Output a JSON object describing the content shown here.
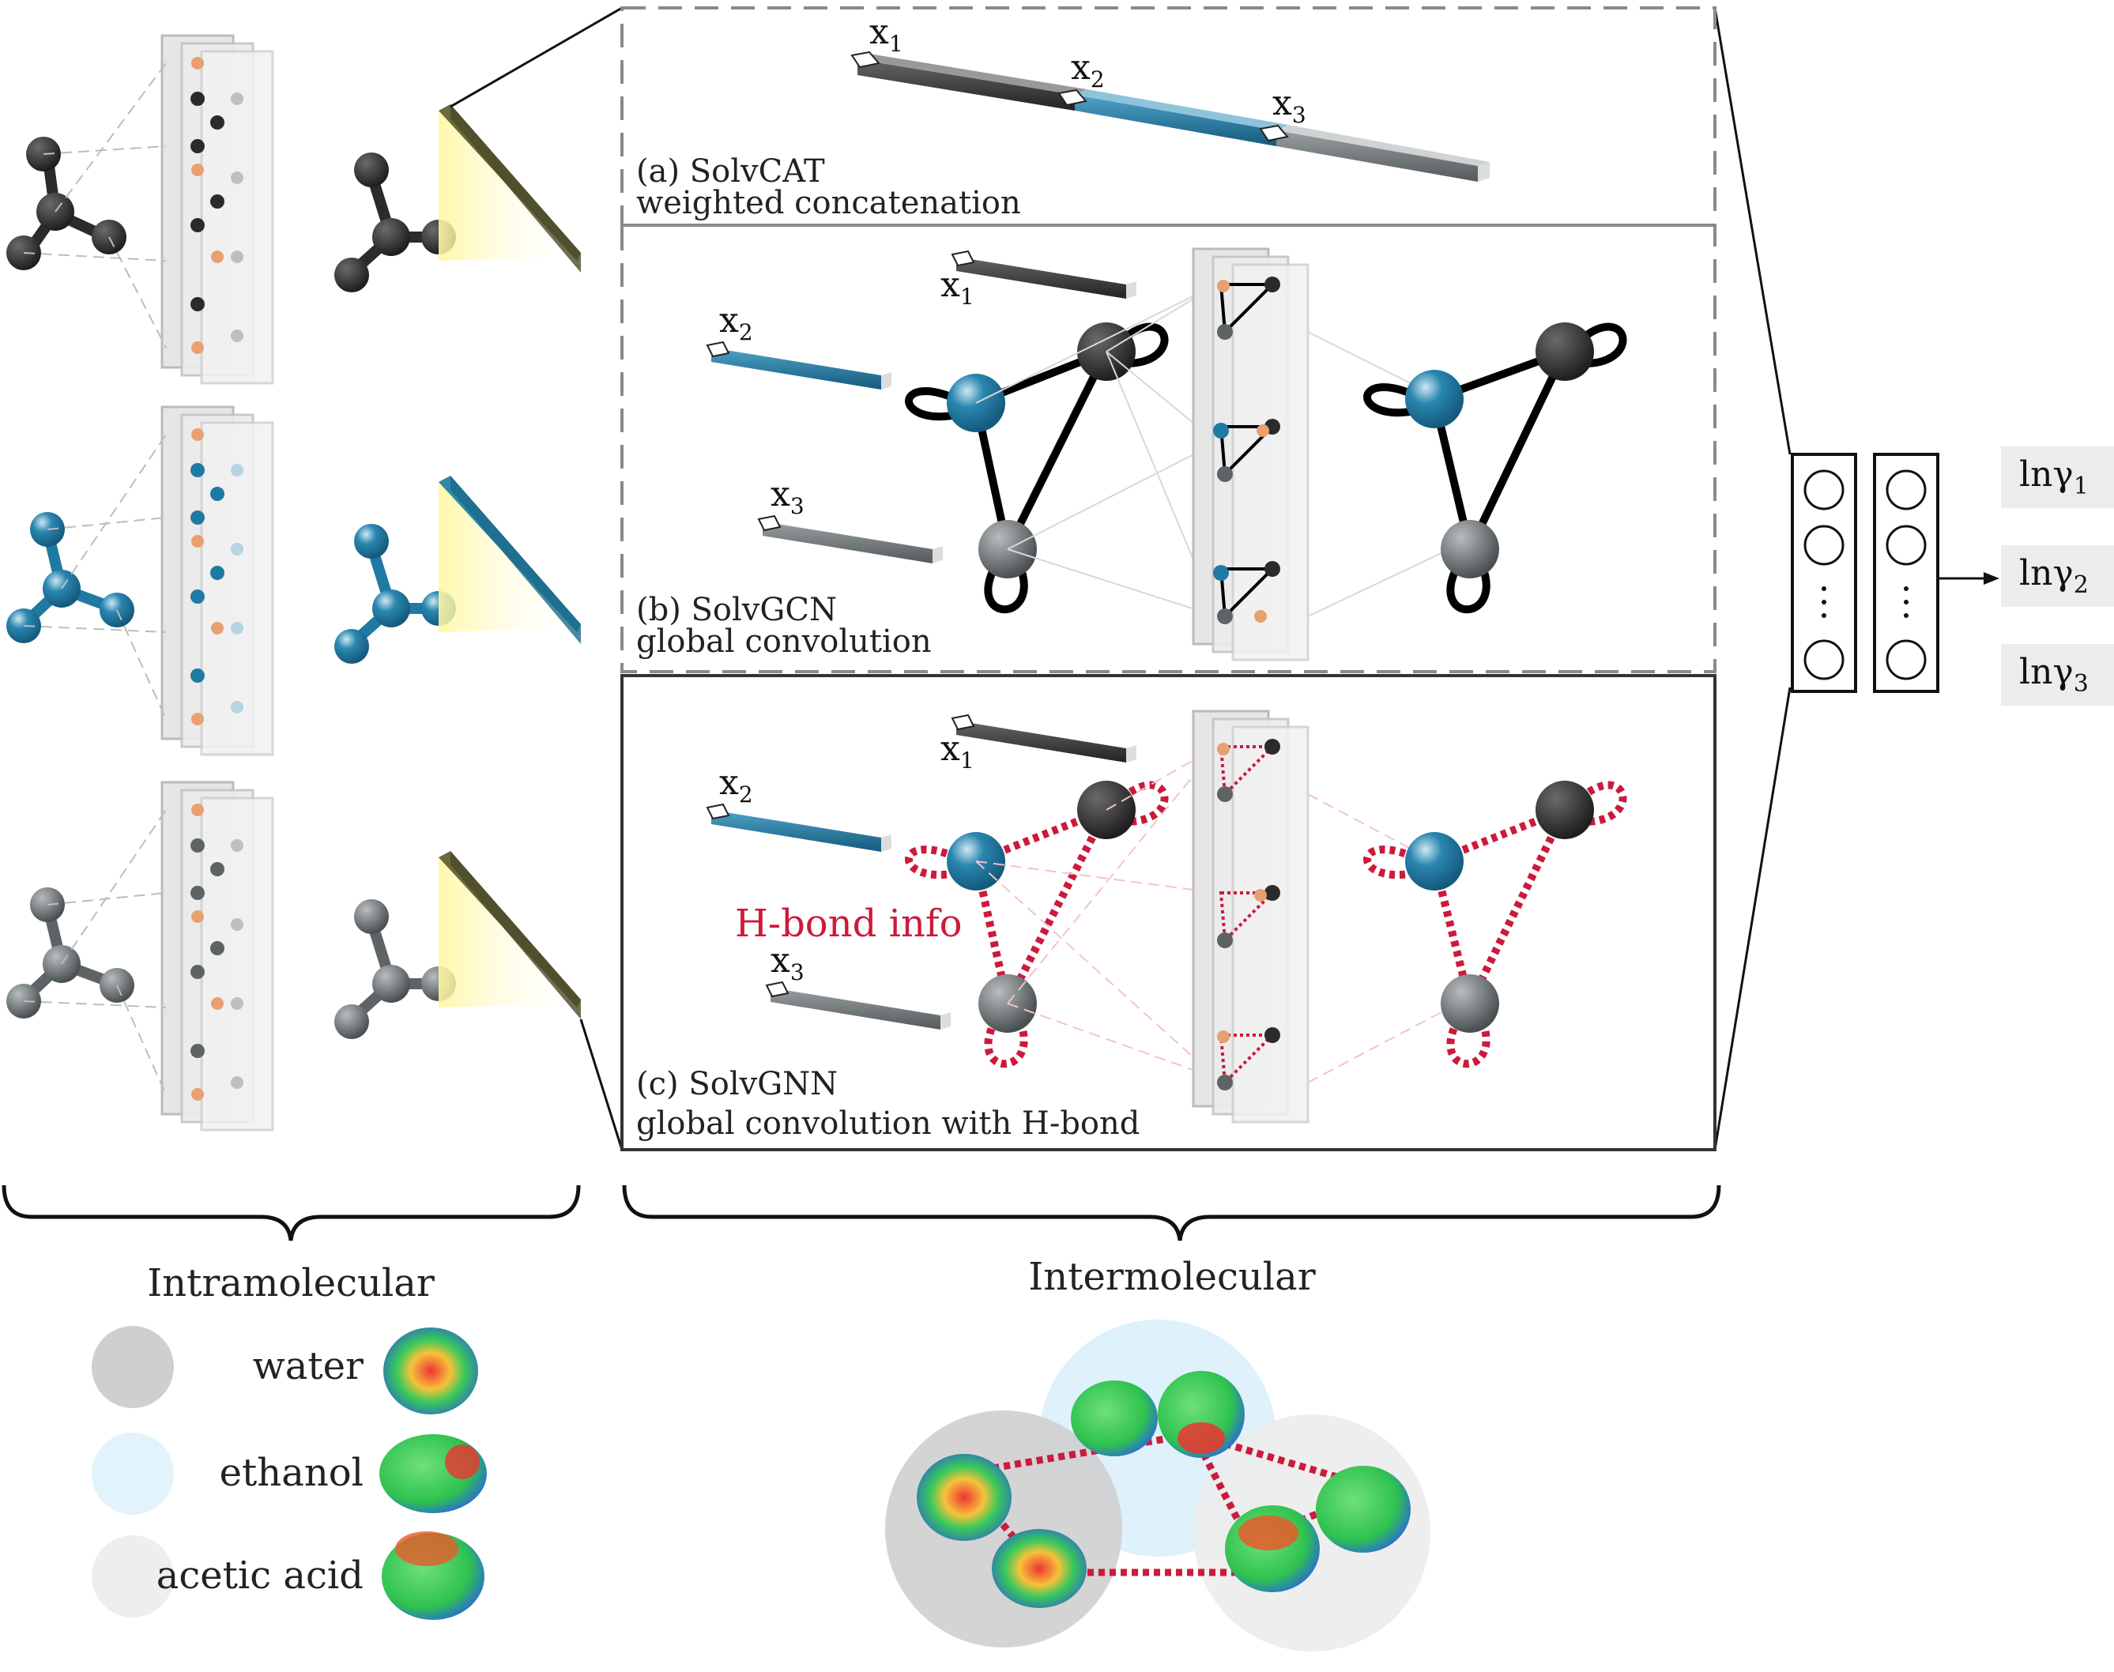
{
  "panels": {
    "a": {
      "title": "(a) SolvCAT",
      "subtitle": "weighted concatenation"
    },
    "b": {
      "title": "(b) SolvGCN",
      "subtitle": "global convolution"
    },
    "c": {
      "title": "(c) SolvGNN",
      "subtitle": "global convolution with H-bond",
      "hbond_label": "H-bond info"
    }
  },
  "variables": {
    "x1": "x",
    "x1_sub": "1",
    "x2": "x",
    "x2_sub": "2",
    "x3": "x",
    "x3_sub": "3"
  },
  "outputs": [
    {
      "base": "lnγ",
      "sub": "1"
    },
    {
      "base": "lnγ",
      "sub": "2"
    },
    {
      "base": "lnγ",
      "sub": "3"
    }
  ],
  "sections": {
    "intra": "Intramolecular",
    "inter": "Intermolecular"
  },
  "legend": [
    {
      "label": "water",
      "color": "#cfcfcf"
    },
    {
      "label": "ethanol",
      "color": "#e3f3fb"
    },
    {
      "label": "acetic acid",
      "color": "#eeeeee"
    }
  ],
  "colors": {
    "dark_molecule": "#2b2b2b",
    "blue_molecule": "#1f7aa3",
    "gray_molecule": "#5e6466",
    "hbond": "#cc1a3b",
    "accent_orange": "#e8a070"
  }
}
